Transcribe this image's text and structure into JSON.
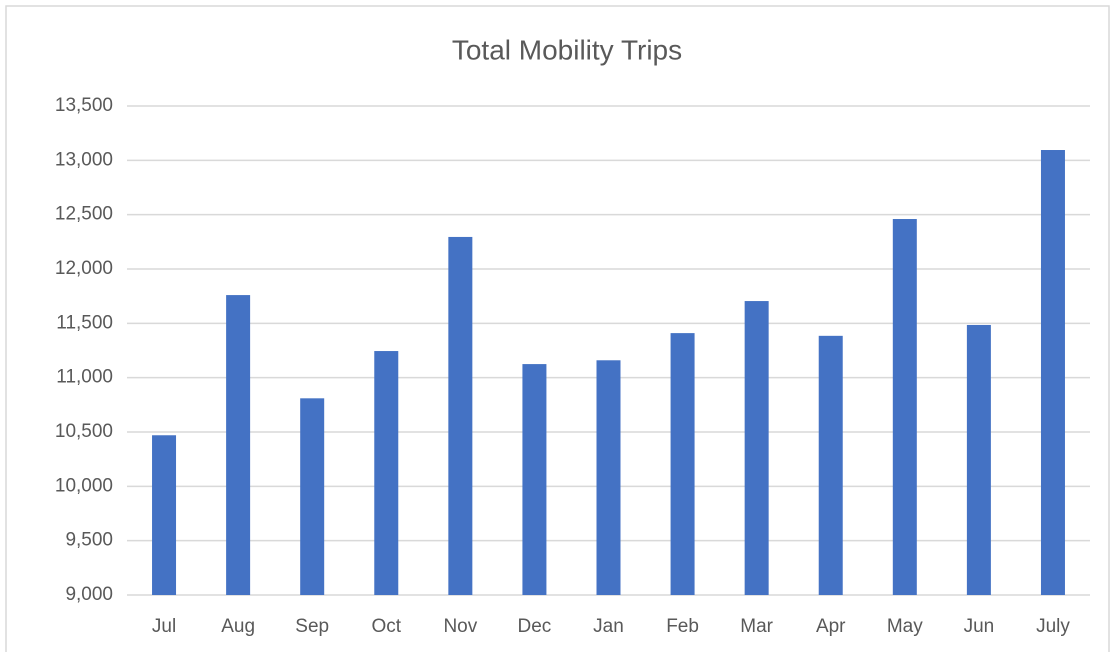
{
  "chart_data": {
    "type": "bar",
    "title": "Total Mobility Trips",
    "categories": [
      "Jul",
      "Aug",
      "Sep",
      "Oct",
      "Nov",
      "Dec",
      "Jan",
      "Feb",
      "Mar",
      "Apr",
      "May",
      "Jun",
      "July"
    ],
    "values": [
      10470,
      11760,
      10810,
      11245,
      12295,
      11125,
      11160,
      11410,
      11705,
      11385,
      12460,
      11485,
      13095
    ],
    "color": "#4472c4",
    "ylim": [
      9000,
      13500
    ],
    "yticks": [
      {
        "value": 9000,
        "label": "9,000"
      },
      {
        "value": 9500,
        "label": "9,500"
      },
      {
        "value": 10000,
        "label": "10,000"
      },
      {
        "value": 10500,
        "label": "10,500"
      },
      {
        "value": 11000,
        "label": "11,000"
      },
      {
        "value": 11500,
        "label": "11,500"
      },
      {
        "value": 12000,
        "label": "12,000"
      },
      {
        "value": 12500,
        "label": "12,500"
      },
      {
        "value": 13000,
        "label": "13,000"
      },
      {
        "value": 13500,
        "label": "13,500"
      }
    ],
    "grid": true
  }
}
